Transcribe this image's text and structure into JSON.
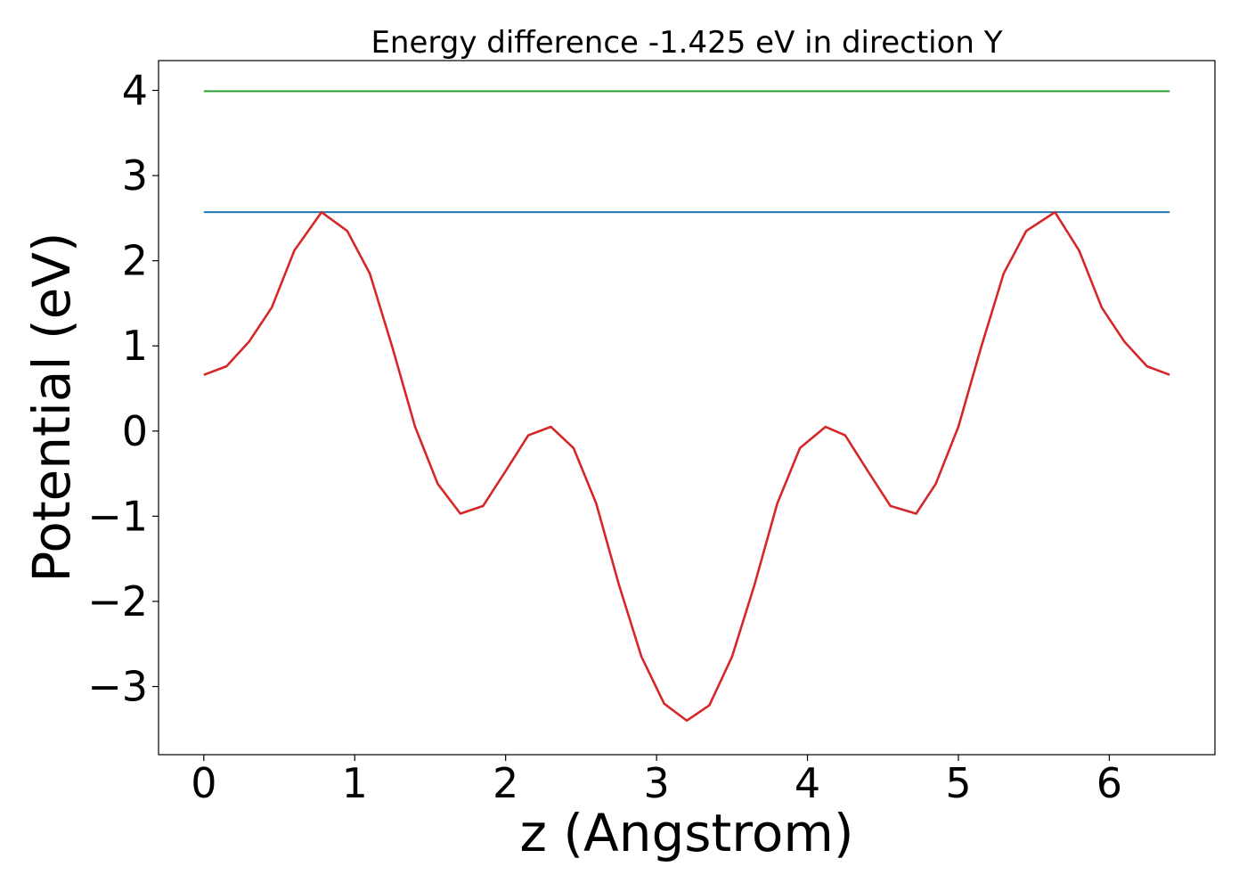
{
  "chart_data": {
    "type": "line",
    "title": "Energy difference -1.425 eV in direction Y",
    "xlabel": "z (Angstrom)",
    "ylabel": "Potential (eV)",
    "xlim": [
      -0.3,
      6.7
    ],
    "ylim": [
      -3.8,
      4.35
    ],
    "x_ticks": [
      0,
      1,
      2,
      3,
      4,
      5,
      6
    ],
    "x_tick_labels": [
      "0",
      "1",
      "2",
      "3",
      "4",
      "5",
      "6"
    ],
    "y_ticks": [
      -3,
      -2,
      -1,
      0,
      1,
      2,
      3,
      4
    ],
    "y_tick_labels": [
      "−3",
      "−2",
      "−1",
      "0",
      "1",
      "2",
      "3",
      "4"
    ],
    "grid": false,
    "series": [
      {
        "color": "#2ca02c",
        "points": [
          [
            0,
            3.99
          ],
          [
            6.4,
            3.99
          ]
        ]
      },
      {
        "color": "#1f77b4",
        "points": [
          [
            0,
            2.57
          ],
          [
            6.4,
            2.57
          ]
        ]
      },
      {
        "color": "#d62728",
        "points": [
          [
            0,
            0.66
          ],
          [
            0.15,
            0.76
          ],
          [
            0.3,
            1.05
          ],
          [
            0.45,
            1.45
          ],
          [
            0.6,
            2.12
          ],
          [
            0.78,
            2.57
          ],
          [
            0.95,
            2.35
          ],
          [
            1.1,
            1.85
          ],
          [
            1.25,
            0.98
          ],
          [
            1.4,
            0.05
          ],
          [
            1.55,
            -0.62
          ],
          [
            1.7,
            -0.97
          ],
          [
            1.85,
            -0.88
          ],
          [
            2.0,
            -0.47
          ],
          [
            2.15,
            -0.05
          ],
          [
            2.3,
            0.05
          ],
          [
            2.45,
            -0.2
          ],
          [
            2.6,
            -0.85
          ],
          [
            2.75,
            -1.8
          ],
          [
            2.9,
            -2.65
          ],
          [
            3.05,
            -3.2
          ],
          [
            3.2,
            -3.4
          ],
          [
            3.35,
            -3.22
          ],
          [
            3.5,
            -2.65
          ],
          [
            3.65,
            -1.8
          ],
          [
            3.8,
            -0.85
          ],
          [
            3.95,
            -0.2
          ],
          [
            4.12,
            0.05
          ],
          [
            4.25,
            -0.05
          ],
          [
            4.4,
            -0.47
          ],
          [
            4.55,
            -0.88
          ],
          [
            4.72,
            -0.97
          ],
          [
            4.85,
            -0.62
          ],
          [
            5.0,
            0.05
          ],
          [
            5.15,
            0.98
          ],
          [
            5.3,
            1.85
          ],
          [
            5.45,
            2.35
          ],
          [
            5.64,
            2.57
          ],
          [
            5.8,
            2.12
          ],
          [
            5.95,
            1.45
          ],
          [
            6.1,
            1.05
          ],
          [
            6.25,
            0.76
          ],
          [
            6.4,
            0.66
          ]
        ]
      }
    ]
  }
}
